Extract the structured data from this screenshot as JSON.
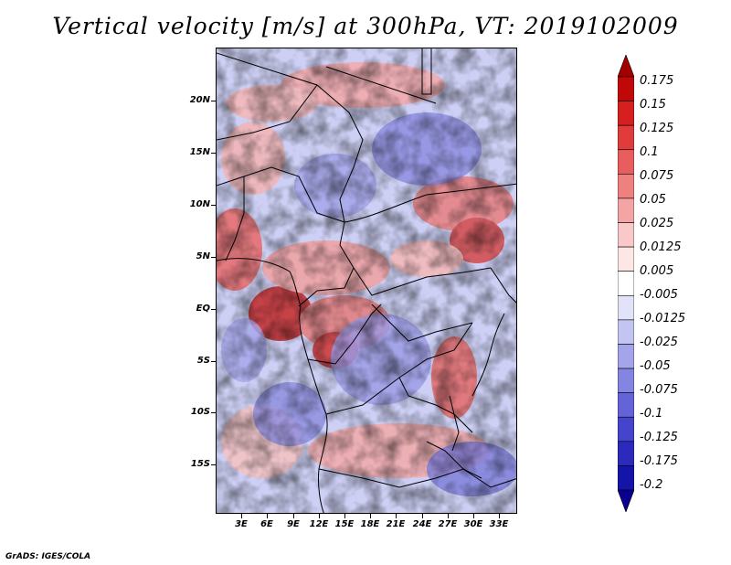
{
  "title": "Vertical velocity [m/s] at 300hPa, VT: 2019102009",
  "footer": "GrADS: IGES/COLA",
  "map": {
    "lat_labels": [
      "20N",
      "15N",
      "10N",
      "5N",
      "EQ",
      "5S",
      "10S",
      "15S"
    ],
    "lon_labels": [
      "3E",
      "6E",
      "9E",
      "12E",
      "15E",
      "18E",
      "21E",
      "24E",
      "27E",
      "30E",
      "33E"
    ],
    "lat_range": [
      -20,
      25
    ],
    "lon_range": [
      0,
      35
    ]
  },
  "colorbar": {
    "levels": [
      "0.175",
      "0.15",
      "0.125",
      "0.1",
      "0.075",
      "0.05",
      "0.025",
      "0.0125",
      "0.005",
      "-0.005",
      "-0.0125",
      "-0.025",
      "-0.05",
      "-0.075",
      "-0.1",
      "-0.125",
      "-0.175",
      "-0.2"
    ],
    "colors": [
      "#a50000",
      "#c00808",
      "#d62020",
      "#e03c3c",
      "#e85e5e",
      "#ee8080",
      "#f4a4a4",
      "#f9c8c8",
      "#fde6e6",
      "#ffffff",
      "#e2e2f8",
      "#c4c4f2",
      "#a4a4ea",
      "#8484e2",
      "#6464d8",
      "#4444cc",
      "#2a2abc",
      "#1414a8",
      "#0a0090"
    ]
  }
}
